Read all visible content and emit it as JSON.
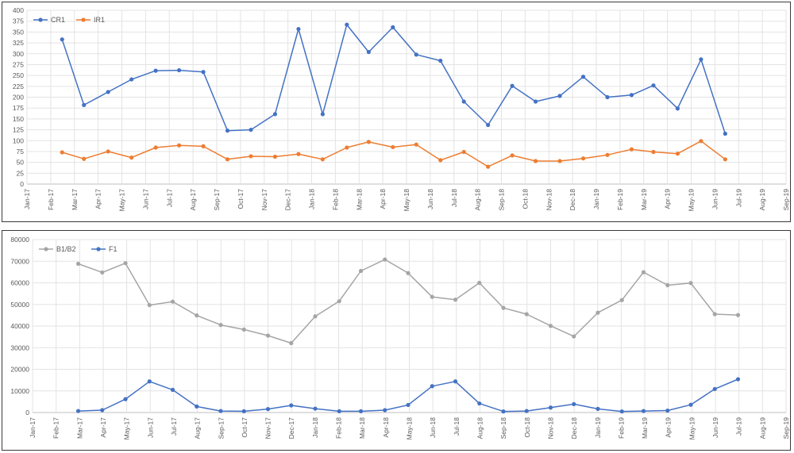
{
  "chart_data": [
    {
      "type": "line",
      "title": "",
      "xlabel": "",
      "ylabel": "",
      "x_ticks": [
        "Jan-17",
        "Feb-17",
        "Mar-17",
        "Apr-17",
        "May-17",
        "Jun-17",
        "Jul-17",
        "Aug-17",
        "Sep-17",
        "Oct-17",
        "Nov-17",
        "Dec-17",
        "Jan-18",
        "Feb-18",
        "Mar-18",
        "Apr-18",
        "May-18",
        "Jun-18",
        "Jul-18",
        "Aug-18",
        "Sep-18",
        "Oct-18",
        "Nov-18",
        "Dec-18",
        "Jan-19",
        "Feb-19",
        "Mar-19",
        "Apr-19",
        "May-19",
        "Jun-19",
        "Jul-19",
        "Aug-19",
        "Sep-19"
      ],
      "y_ticks": [
        "0",
        "25",
        "50",
        "75",
        "100",
        "125",
        "150",
        "175",
        "200",
        "225",
        "250",
        "275",
        "300",
        "325",
        "350",
        "375",
        "400"
      ],
      "ylim": [
        0,
        400
      ],
      "x_start": "2017-01-01",
      "x_end": "2019-09-01",
      "grid": true,
      "legend_position": "top-left",
      "series": [
        {
          "name": "CR1",
          "color": "#4472C4",
          "points": [
            {
              "x": "2017-02-15",
              "y": 333
            },
            {
              "x": "2017-03-15",
              "y": 182
            },
            {
              "x": "2017-04-15",
              "y": 212
            },
            {
              "x": "2017-05-15",
              "y": 241
            },
            {
              "x": "2017-06-15",
              "y": 261
            },
            {
              "x": "2017-07-15",
              "y": 262
            },
            {
              "x": "2017-08-15",
              "y": 258
            },
            {
              "x": "2017-09-15",
              "y": 123
            },
            {
              "x": "2017-10-15",
              "y": 125
            },
            {
              "x": "2017-11-15",
              "y": 161
            },
            {
              "x": "2017-12-15",
              "y": 357
            },
            {
              "x": "2018-01-15",
              "y": 161
            },
            {
              "x": "2018-02-15",
              "y": 367
            },
            {
              "x": "2018-03-15",
              "y": 304
            },
            {
              "x": "2018-04-15",
              "y": 361
            },
            {
              "x": "2018-05-15",
              "y": 298
            },
            {
              "x": "2018-06-15",
              "y": 284
            },
            {
              "x": "2018-07-15",
              "y": 190
            },
            {
              "x": "2018-08-15",
              "y": 136
            },
            {
              "x": "2018-09-15",
              "y": 226
            },
            {
              "x": "2018-10-15",
              "y": 190
            },
            {
              "x": "2018-11-15",
              "y": 203
            },
            {
              "x": "2018-12-15",
              "y": 247
            },
            {
              "x": "2019-01-15",
              "y": 200
            },
            {
              "x": "2019-02-15",
              "y": 205
            },
            {
              "x": "2019-03-15",
              "y": 227
            },
            {
              "x": "2019-04-15",
              "y": 174
            },
            {
              "x": "2019-05-15",
              "y": 287
            },
            {
              "x": "2019-06-15",
              "y": 116
            }
          ]
        },
        {
          "name": "IR1",
          "color": "#ED7D31",
          "points": [
            {
              "x": "2017-02-15",
              "y": 73
            },
            {
              "x": "2017-03-15",
              "y": 58
            },
            {
              "x": "2017-04-15",
              "y": 75
            },
            {
              "x": "2017-05-15",
              "y": 61
            },
            {
              "x": "2017-06-15",
              "y": 84
            },
            {
              "x": "2017-07-15",
              "y": 89
            },
            {
              "x": "2017-08-15",
              "y": 87
            },
            {
              "x": "2017-09-15",
              "y": 57
            },
            {
              "x": "2017-10-15",
              "y": 64
            },
            {
              "x": "2017-11-15",
              "y": 63
            },
            {
              "x": "2017-12-15",
              "y": 69
            },
            {
              "x": "2018-01-15",
              "y": 57
            },
            {
              "x": "2018-02-15",
              "y": 84
            },
            {
              "x": "2018-03-15",
              "y": 97
            },
            {
              "x": "2018-04-15",
              "y": 85
            },
            {
              "x": "2018-05-15",
              "y": 91
            },
            {
              "x": "2018-06-15",
              "y": 55
            },
            {
              "x": "2018-07-15",
              "y": 74
            },
            {
              "x": "2018-08-15",
              "y": 40
            },
            {
              "x": "2018-09-15",
              "y": 66
            },
            {
              "x": "2018-10-15",
              "y": 53
            },
            {
              "x": "2018-11-15",
              "y": 53
            },
            {
              "x": "2018-12-15",
              "y": 59
            },
            {
              "x": "2019-01-15",
              "y": 67
            },
            {
              "x": "2019-02-15",
              "y": 80
            },
            {
              "x": "2019-03-15",
              "y": 74
            },
            {
              "x": "2019-04-15",
              "y": 70
            },
            {
              "x": "2019-05-15",
              "y": 99
            },
            {
              "x": "2019-06-15",
              "y": 57
            }
          ]
        }
      ]
    },
    {
      "type": "line",
      "title": "",
      "xlabel": "",
      "ylabel": "",
      "x_ticks": [
        "Jan-17",
        "Feb-17",
        "Mar-17",
        "Apr-17",
        "May-17",
        "Jun-17",
        "Jul-17",
        "Aug-17",
        "Sep-17",
        "Oct-17",
        "Nov-17",
        "Dec-17",
        "Jan-18",
        "Feb-18",
        "Mar-18",
        "Apr-18",
        "May-18",
        "Jun-18",
        "Jul-18",
        "Aug-18",
        "Sep-18",
        "Oct-18",
        "Nov-18",
        "Dec-18",
        "Jan-19",
        "Feb-19",
        "Mar-19",
        "Apr-19",
        "May-19",
        "Jun-19",
        "Jul-19",
        "Aug-19",
        "Sep-19"
      ],
      "y_ticks": [
        "0",
        "10000",
        "20000",
        "30000",
        "40000",
        "50000",
        "60000",
        "70000",
        "80000"
      ],
      "ylim": [
        0,
        80000
      ],
      "x_start": "2017-01-01",
      "x_end": "2019-09-01",
      "grid": true,
      "legend_position": "top-left",
      "series": [
        {
          "name": "B1/B2",
          "color": "#A5A5A5",
          "points": [
            {
              "x": "2017-03-01",
              "y": 68800
            },
            {
              "x": "2017-04-01",
              "y": 64800
            },
            {
              "x": "2017-05-01",
              "y": 69100
            },
            {
              "x": "2017-06-01",
              "y": 49700
            },
            {
              "x": "2017-07-01",
              "y": 51300
            },
            {
              "x": "2017-08-01",
              "y": 44900
            },
            {
              "x": "2017-09-01",
              "y": 40500
            },
            {
              "x": "2017-10-01",
              "y": 38400
            },
            {
              "x": "2017-11-01",
              "y": 35600
            },
            {
              "x": "2017-12-01",
              "y": 32100
            },
            {
              "x": "2018-01-01",
              "y": 44500
            },
            {
              "x": "2018-02-01",
              "y": 51500
            },
            {
              "x": "2018-03-01",
              "y": 65500
            },
            {
              "x": "2018-04-01",
              "y": 70800
            },
            {
              "x": "2018-05-01",
              "y": 64500
            },
            {
              "x": "2018-06-01",
              "y": 53500
            },
            {
              "x": "2018-07-01",
              "y": 52200
            },
            {
              "x": "2018-08-01",
              "y": 60000
            },
            {
              "x": "2018-09-01",
              "y": 48400
            },
            {
              "x": "2018-10-01",
              "y": 45500
            },
            {
              "x": "2018-11-01",
              "y": 40100
            },
            {
              "x": "2018-12-01",
              "y": 35200
            },
            {
              "x": "2019-01-01",
              "y": 46200
            },
            {
              "x": "2019-02-01",
              "y": 52000
            },
            {
              "x": "2019-03-01",
              "y": 64900
            },
            {
              "x": "2019-04-01",
              "y": 58900
            },
            {
              "x": "2019-05-01",
              "y": 59900
            },
            {
              "x": "2019-06-01",
              "y": 45500
            },
            {
              "x": "2019-07-01",
              "y": 45100
            }
          ]
        },
        {
          "name": "F1",
          "color": "#4472C4",
          "points": [
            {
              "x": "2017-03-01",
              "y": 700
            },
            {
              "x": "2017-04-01",
              "y": 1100
            },
            {
              "x": "2017-05-01",
              "y": 6200
            },
            {
              "x": "2017-06-01",
              "y": 14400
            },
            {
              "x": "2017-07-01",
              "y": 10500
            },
            {
              "x": "2017-08-01",
              "y": 2800
            },
            {
              "x": "2017-09-01",
              "y": 700
            },
            {
              "x": "2017-10-01",
              "y": 600
            },
            {
              "x": "2017-11-01",
              "y": 1600
            },
            {
              "x": "2017-12-01",
              "y": 3300
            },
            {
              "x": "2018-01-01",
              "y": 1800
            },
            {
              "x": "2018-02-01",
              "y": 600
            },
            {
              "x": "2018-03-01",
              "y": 600
            },
            {
              "x": "2018-04-01",
              "y": 1100
            },
            {
              "x": "2018-05-01",
              "y": 3500
            },
            {
              "x": "2018-06-01",
              "y": 12200
            },
            {
              "x": "2018-07-01",
              "y": 14400
            },
            {
              "x": "2018-08-01",
              "y": 4200
            },
            {
              "x": "2018-09-01",
              "y": 500
            },
            {
              "x": "2018-10-01",
              "y": 700
            },
            {
              "x": "2018-11-01",
              "y": 2300
            },
            {
              "x": "2018-12-01",
              "y": 3900
            },
            {
              "x": "2019-01-01",
              "y": 1700
            },
            {
              "x": "2019-02-01",
              "y": 500
            },
            {
              "x": "2019-03-01",
              "y": 700
            },
            {
              "x": "2019-04-01",
              "y": 900
            },
            {
              "x": "2019-05-01",
              "y": 3600
            },
            {
              "x": "2019-06-01",
              "y": 10900
            },
            {
              "x": "2019-07-01",
              "y": 15400
            }
          ]
        }
      ]
    }
  ]
}
